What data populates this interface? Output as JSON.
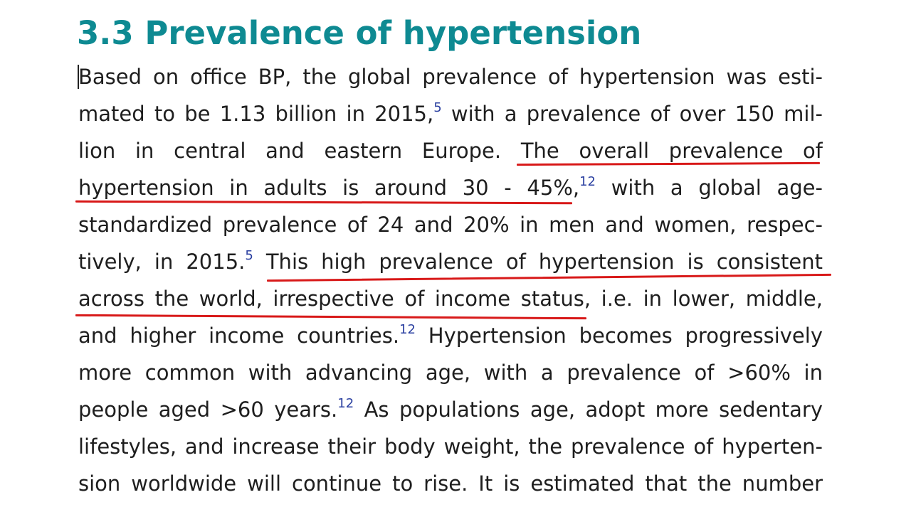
{
  "section": {
    "heading": "3.3 Prevalence of hypertension"
  },
  "lines": [
    {
      "parts": [
        {
          "text": "Based on office BP, the global prevalence of hypertension was esti-"
        }
      ]
    },
    {
      "parts": [
        {
          "text": "mated to be 1.13 billion in 2015,"
        },
        {
          "ref": "5"
        },
        {
          "text": " with a prevalence of over 150 mil-"
        }
      ]
    },
    {
      "parts": [
        {
          "text": "lion in central and eastern Europe. The overall prevalence of"
        }
      ]
    },
    {
      "parts": [
        {
          "text": "hypertension in adults is around 30 - 45%,"
        },
        {
          "ref": "12"
        },
        {
          "text": " with a global age-"
        }
      ]
    },
    {
      "parts": [
        {
          "text": "standardized prevalence of 24 and 20% in men and women, respec-"
        }
      ]
    },
    {
      "parts": [
        {
          "text": "tively, in 2015."
        },
        {
          "ref": "5"
        },
        {
          "text": " This high prevalence of hypertension is consistent"
        }
      ]
    },
    {
      "parts": [
        {
          "text": "across the world, irrespective of income status, i.e. in lower, middle,"
        }
      ]
    },
    {
      "parts": [
        {
          "text": "and higher income countries."
        },
        {
          "ref": "12"
        },
        {
          "text": " Hypertension becomes progressively"
        }
      ]
    },
    {
      "parts": [
        {
          "text": "more common with advancing age, with a prevalence of >60% in"
        }
      ]
    },
    {
      "parts": [
        {
          "text": "people aged >60 years."
        },
        {
          "ref": "12"
        },
        {
          "text": " As populations age, adopt more sedentary"
        }
      ]
    },
    {
      "parts": [
        {
          "text": "lifestyles, and increase their body weight, the prevalence of hyperten-"
        }
      ]
    },
    {
      "parts": [
        {
          "text": "sion worldwide will continue to rise. It is estimated that the number"
        }
      ]
    }
  ],
  "annotations": {
    "underline_color": "#d81919"
  }
}
